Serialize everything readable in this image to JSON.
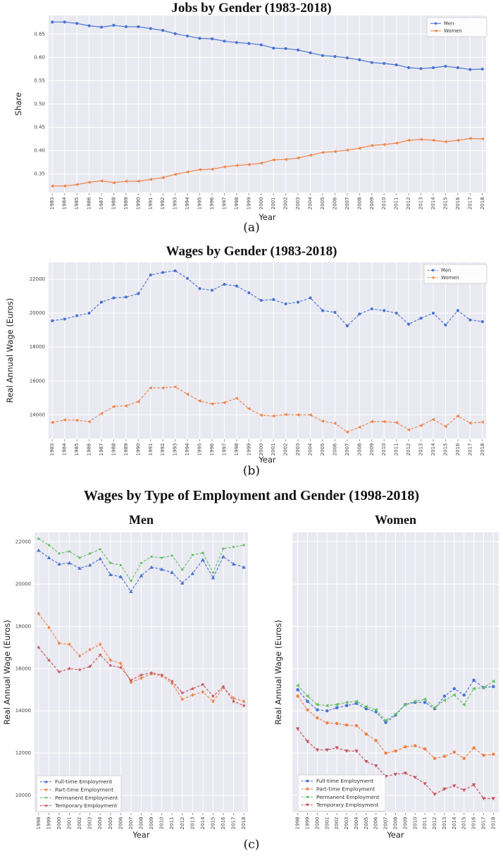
{
  "figure": {
    "suptitle": "Wages by Type of Employment and Gender (1998-2018)",
    "captions": {
      "a": "(a)",
      "b": "(b)",
      "c": "(c)"
    }
  },
  "style": {
    "plot_bg": "#e9e9f1",
    "grid": "#ffffff",
    "tick_color": "#444444",
    "label_color": "#222222",
    "blue": "#4673d1",
    "orange": "#f08245",
    "green": "#62c162",
    "red": "#c9545c"
  },
  "chart_data": [
    {
      "id": "jobs-by-gender",
      "type": "line",
      "title": "Jobs by Gender (1983-2018)",
      "xlabel": "Year",
      "ylabel": "Share",
      "grid": true,
      "legend_position": "top-right",
      "ylim": [
        0.31,
        0.69
      ],
      "yticks": [
        0.35,
        0.4,
        0.45,
        0.5,
        0.55,
        0.6,
        0.65
      ],
      "ytick_labels": [
        "0.35",
        "0.40",
        "0.45",
        "0.50",
        "0.55",
        "0.60",
        "0.65"
      ],
      "x": [
        1983,
        1984,
        1985,
        1986,
        1987,
        1988,
        1989,
        1990,
        1991,
        1992,
        1993,
        1994,
        1995,
        1996,
        1997,
        1998,
        1999,
        2000,
        2001,
        2002,
        2003,
        2004,
        2005,
        2006,
        2007,
        2008,
        2009,
        2010,
        2011,
        2012,
        2013,
        2014,
        2015,
        2016,
        2017,
        2018
      ],
      "series": [
        {
          "name": "Men",
          "color": "#4673d1",
          "marker": "circle",
          "dash": "solid",
          "values": [
            0.676,
            0.676,
            0.673,
            0.668,
            0.665,
            0.669,
            0.666,
            0.666,
            0.662,
            0.658,
            0.651,
            0.646,
            0.641,
            0.64,
            0.635,
            0.632,
            0.63,
            0.627,
            0.62,
            0.619,
            0.616,
            0.61,
            0.604,
            0.602,
            0.599,
            0.595,
            0.589,
            0.587,
            0.584,
            0.578,
            0.576,
            0.578,
            0.581,
            0.578,
            0.574,
            0.575
          ]
        },
        {
          "name": "Women",
          "color": "#f08245",
          "marker": "triangle-left",
          "dash": "solid",
          "values": [
            0.324,
            0.324,
            0.327,
            0.332,
            0.335,
            0.331,
            0.334,
            0.334,
            0.338,
            0.342,
            0.349,
            0.354,
            0.359,
            0.36,
            0.365,
            0.368,
            0.37,
            0.373,
            0.38,
            0.381,
            0.384,
            0.39,
            0.396,
            0.398,
            0.401,
            0.405,
            0.411,
            0.413,
            0.416,
            0.422,
            0.424,
            0.422,
            0.419,
            0.422,
            0.426,
            0.425
          ]
        }
      ]
    },
    {
      "id": "wages-by-gender",
      "type": "line",
      "title": "Wages by Gender (1983-2018)",
      "xlabel": "Year",
      "ylabel": "Real Annual Wage (Euros)",
      "grid": true,
      "legend_position": "top-right",
      "ylim": [
        12600,
        23000
      ],
      "yticks": [
        14000,
        16000,
        18000,
        20000,
        22000
      ],
      "ytick_labels": [
        "14000",
        "16000",
        "18000",
        "20000",
        "22000"
      ],
      "x": [
        1983,
        1984,
        1985,
        1986,
        1987,
        1988,
        1989,
        1990,
        1991,
        1992,
        1993,
        1994,
        1995,
        1996,
        1997,
        1998,
        1999,
        2000,
        2001,
        2002,
        2003,
        2004,
        2005,
        2006,
        2007,
        2008,
        2009,
        2010,
        2011,
        2012,
        2013,
        2014,
        2015,
        2016,
        2017,
        2018
      ],
      "series": [
        {
          "name": "Men",
          "color": "#4673d1",
          "marker": "circle",
          "dash": "dashed",
          "values": [
            19550,
            19650,
            19850,
            20000,
            20650,
            20900,
            20950,
            21150,
            22250,
            22400,
            22500,
            22050,
            21450,
            21350,
            21700,
            21600,
            21200,
            20750,
            20800,
            20550,
            20650,
            20900,
            20150,
            20050,
            19250,
            19950,
            20250,
            20150,
            20000,
            19350,
            19700,
            20000,
            19300,
            20150,
            19600,
            19500
          ]
        },
        {
          "name": "Women",
          "color": "#f08245",
          "marker": "triangle-left",
          "dash": "dashed",
          "values": [
            13550,
            13700,
            13680,
            13600,
            14080,
            14490,
            14530,
            14780,
            15590,
            15590,
            15650,
            15220,
            14820,
            14650,
            14720,
            14980,
            14370,
            13980,
            13930,
            14020,
            14000,
            14000,
            13630,
            13500,
            12990,
            13270,
            13600,
            13600,
            13550,
            13120,
            13370,
            13730,
            13320,
            13930,
            13520,
            13570
          ]
        }
      ]
    },
    {
      "id": "wages-by-employment-men",
      "type": "line",
      "title": "Men",
      "xlabel": "Year",
      "ylabel": "Real Annual Wage (Euros)",
      "grid": true,
      "legend_position": "bottom-left",
      "show_ytick_labels": true,
      "ylim": [
        9200,
        22450
      ],
      "yticks": [
        10000,
        12000,
        14000,
        16000,
        18000,
        20000,
        22000
      ],
      "ytick_labels": [
        "10000",
        "12000",
        "14000",
        "16000",
        "18000",
        "20000",
        "22000"
      ],
      "x": [
        1998,
        1999,
        2000,
        2001,
        2002,
        2003,
        2004,
        2005,
        2006,
        2007,
        2008,
        2009,
        2010,
        2011,
        2012,
        2013,
        2014,
        2015,
        2016,
        2017,
        2018
      ],
      "series": [
        {
          "name": "Full-time Employment",
          "color": "#4673d1",
          "marker": "triangle-up",
          "dash": "dashed",
          "values": [
            21600,
            21250,
            20950,
            21000,
            20750,
            20900,
            21200,
            20450,
            20350,
            19650,
            20400,
            20800,
            20700,
            20550,
            20050,
            20500,
            21150,
            20300,
            21300,
            20950,
            20800
          ]
        },
        {
          "name": "Part-time Employment",
          "color": "#f08245",
          "marker": "diamond",
          "dash": "dashed",
          "values": [
            18600,
            17950,
            17200,
            17150,
            16600,
            16900,
            17150,
            16400,
            16250,
            15350,
            15550,
            15750,
            15650,
            15300,
            14550,
            14750,
            14900,
            14450,
            15100,
            14600,
            14450
          ]
        },
        {
          "name": "Permanent Employment",
          "color": "#62c162",
          "marker": "dot",
          "dash": "dashed",
          "values": [
            22150,
            21850,
            21450,
            21550,
            21250,
            21450,
            21650,
            21000,
            20900,
            20150,
            21000,
            21300,
            21250,
            21350,
            20680,
            21380,
            21480,
            20550,
            21680,
            21760,
            21850
          ]
        },
        {
          "name": "Temporary Employment",
          "color": "#c9545c",
          "marker": "star",
          "dash": "dashed",
          "values": [
            17000,
            16400,
            15850,
            16000,
            15950,
            16100,
            16650,
            16150,
            16050,
            15450,
            15700,
            15800,
            15700,
            15400,
            14850,
            15050,
            15250,
            14700,
            15150,
            14450,
            14250
          ]
        }
      ]
    },
    {
      "id": "wages-by-employment-women",
      "type": "line",
      "title": "Women",
      "xlabel": "Year",
      "ylabel": "Real Annual Wage (Euros)",
      "grid": true,
      "legend_position": "bottom-left",
      "show_ytick_labels": false,
      "ylim": [
        9200,
        22450
      ],
      "yticks": [
        10000,
        12000,
        14000,
        16000,
        18000,
        20000,
        22000
      ],
      "ytick_labels": [
        "10000",
        "12000",
        "14000",
        "16000",
        "18000",
        "20000",
        "22000"
      ],
      "x": [
        1998,
        1999,
        2000,
        2001,
        2002,
        2003,
        2004,
        2005,
        2006,
        2007,
        2008,
        2009,
        2010,
        2011,
        2012,
        2013,
        2014,
        2015,
        2016,
        2017,
        2018
      ],
      "series": [
        {
          "name": "Full-time Employment",
          "color": "#4673d1",
          "marker": "circle",
          "dash": "dashed",
          "values": [
            15000,
            14450,
            14050,
            14000,
            14150,
            14250,
            14350,
            14100,
            13950,
            13450,
            13800,
            14300,
            14400,
            14400,
            14100,
            14700,
            15050,
            14750,
            15450,
            15100,
            15150
          ]
        },
        {
          "name": "Part-time Employment",
          "color": "#f08245",
          "marker": "circle",
          "dash": "dashed",
          "values": [
            14700,
            14050,
            13670,
            13430,
            13400,
            13330,
            13300,
            12900,
            12600,
            12000,
            12100,
            12300,
            12350,
            12200,
            11750,
            11850,
            12050,
            11750,
            12250,
            11900,
            11950
          ]
        },
        {
          "name": "Permanent Employment",
          "color": "#62c162",
          "marker": "triangle-left",
          "dash": "dashed",
          "values": [
            15200,
            14700,
            14300,
            14250,
            14300,
            14400,
            14450,
            14200,
            14050,
            13550,
            13850,
            14300,
            14450,
            14550,
            14150,
            14500,
            14750,
            14300,
            15050,
            15100,
            15400
          ]
        },
        {
          "name": "Temporary Employment",
          "color": "#c9545c",
          "marker": "triangle-down",
          "dash": "dashed",
          "values": [
            13150,
            12550,
            12150,
            12150,
            12250,
            12100,
            12100,
            11600,
            11400,
            10900,
            11000,
            11050,
            10850,
            10550,
            10050,
            10300,
            10450,
            10250,
            10500,
            9850,
            9850
          ]
        }
      ]
    }
  ]
}
